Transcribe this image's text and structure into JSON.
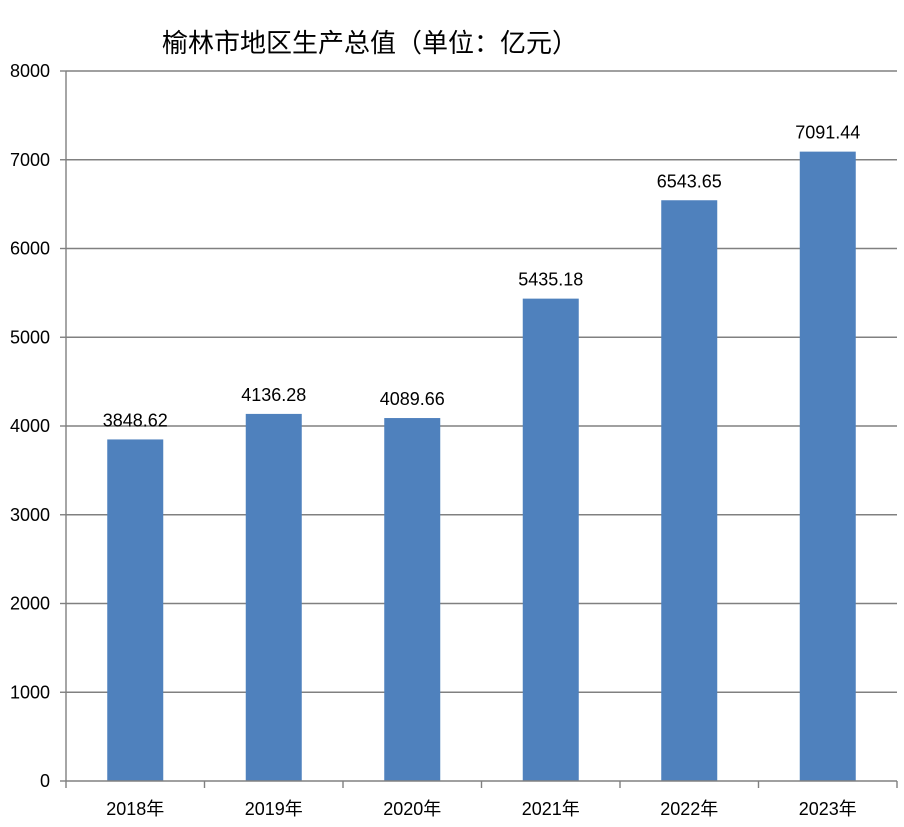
{
  "chart_data": {
    "type": "bar",
    "title": "榆林市地区生产总值（单位：亿元）",
    "categories": [
      "2018年",
      "2019年",
      "2020年",
      "2021年",
      "2022年",
      "2023年"
    ],
    "values": [
      3848.62,
      4136.28,
      4089.66,
      5435.18,
      6543.65,
      7091.44
    ],
    "data_labels": [
      "3848.62",
      "4136.28",
      "4089.66",
      "5435.18",
      "6543.65",
      "7091.44"
    ],
    "ylim": [
      0,
      8000
    ],
    "yticks": [
      0,
      1000,
      2000,
      3000,
      4000,
      5000,
      6000,
      7000,
      8000
    ],
    "grid": true,
    "legend": "none",
    "colors": {
      "bar": "#4f81bd",
      "grid": "#808080"
    }
  }
}
